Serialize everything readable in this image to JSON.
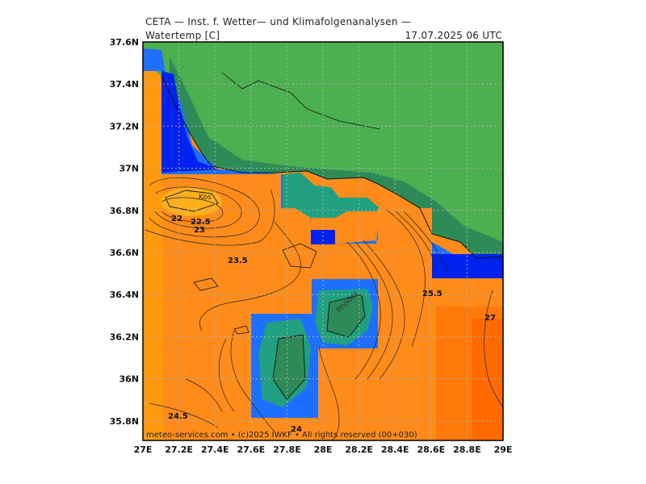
{
  "header": {
    "title": "CETA — Inst. f. Wetter— und Klimafolgenanalysen —",
    "variable": "Watertemp [C]",
    "datetime": "17.07.2025 06 UTC"
  },
  "footer": {
    "credit": "meteo-services.com • (c)2025 IWKF • All rights reserved (00+030)"
  },
  "axes": {
    "lon_labels": [
      "27E",
      "27.2E",
      "27.4E",
      "27.6E",
      "27.8E",
      "28E",
      "28.2E",
      "28.4E",
      "28.6E",
      "28.8E",
      "29E"
    ],
    "lat_labels": [
      "37.6N",
      "37.4N",
      "37.2N",
      "37N",
      "36.8N",
      "36.6N",
      "36.4N",
      "36.2N",
      "36N",
      "35.8N"
    ]
  },
  "place_labels": [
    "Kos",
    "Rhodes"
  ],
  "contour_labels": [
    "22",
    "22.5",
    "23",
    "23.5",
    "25.5",
    "27",
    "24.5",
    "24"
  ],
  "colors": {
    "land": "#4caf50",
    "land_dark": "#2e8b57",
    "coast_teal": "#20a080",
    "coast_blue": "#1e6fff",
    "deep_blue": "#0022ee",
    "sea_orange_light": "#ff9a10",
    "sea_orange": "#ff8c1a",
    "sea_orange_dark": "#ff6a00",
    "kos_warm": "#ffb01a"
  }
}
